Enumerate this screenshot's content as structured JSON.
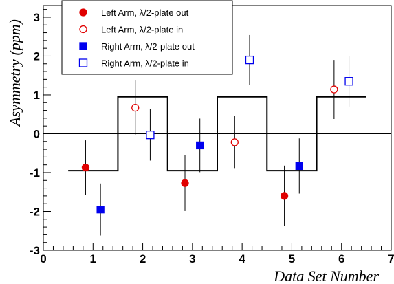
{
  "chart_data": {
    "type": "scatter",
    "title": "",
    "xlabel": "Data Set Number",
    "ylabel": "Asymmetry (ppm)",
    "xlim": [
      0,
      7
    ],
    "ylim": [
      -3,
      3.3
    ],
    "xticks": [
      "0",
      "1",
      "2",
      "3",
      "4",
      "5",
      "6",
      "7"
    ],
    "yticks": [
      "-3",
      "-2",
      "-1",
      "0",
      "1",
      "2",
      "3"
    ],
    "grid": false,
    "legend_position": "top-left",
    "zero_line": 0,
    "series": [
      {
        "name": "Left Arm, λ/2-plate out",
        "marker": "filled-circle",
        "color": "#e00000",
        "x": [
          0.85,
          2.85,
          4.85
        ],
        "y": [
          -0.87,
          -1.27,
          -1.6
        ],
        "err": [
          0.7,
          0.72,
          0.78
        ]
      },
      {
        "name": "Left Arm, λ/2-plate in",
        "marker": "open-circle",
        "color": "#e00000",
        "x": [
          1.85,
          3.85,
          5.85
        ],
        "y": [
          0.67,
          -0.22,
          1.14
        ],
        "err": [
          0.7,
          0.68,
          0.76
        ]
      },
      {
        "name": "Right Arm, λ/2-plate out",
        "marker": "filled-square",
        "color": "#0000ee",
        "x": [
          1.15,
          3.15,
          5.15
        ],
        "y": [
          -1.95,
          -0.3,
          -0.83
        ],
        "err": [
          0.67,
          0.69,
          0.71
        ]
      },
      {
        "name": "Right Arm, λ/2-plate in",
        "marker": "open-square",
        "color": "#0000ee",
        "x": [
          2.15,
          4.15,
          6.15
        ],
        "y": [
          -0.03,
          1.9,
          1.35
        ],
        "err": [
          0.66,
          0.64,
          0.65
        ]
      }
    ],
    "step_line": {
      "edges": [
        0.5,
        1.5,
        2.5,
        3.5,
        4.5,
        5.5,
        6.5
      ],
      "values": [
        -0.95,
        0.95,
        -0.95,
        0.95,
        -0.95,
        0.95
      ]
    }
  }
}
